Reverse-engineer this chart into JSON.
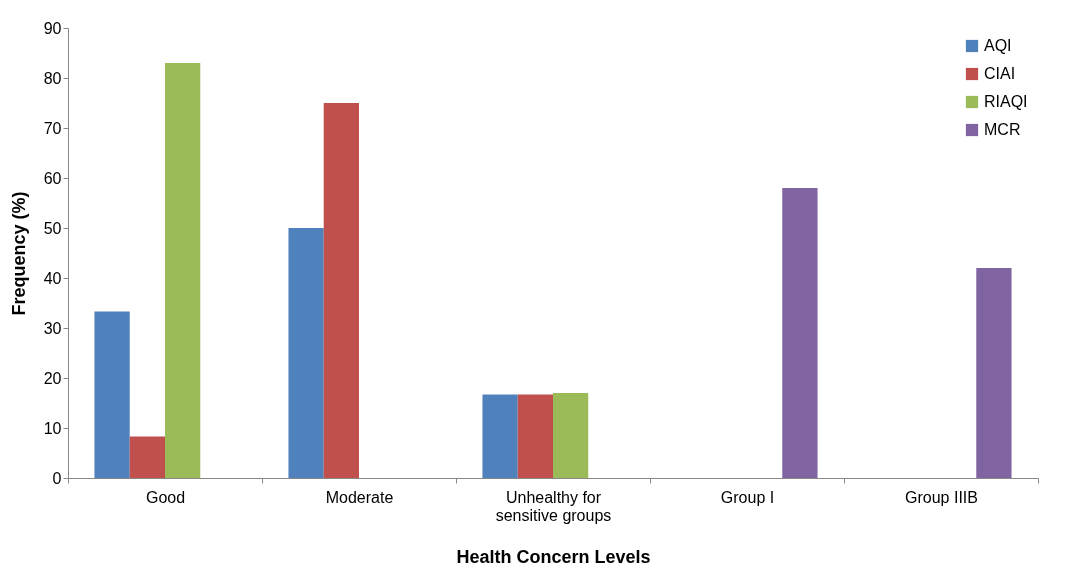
{
  "chart_data": {
    "type": "bar",
    "xlabel": "Health Concern Levels",
    "ylabel": "Frequency (%)",
    "categories": [
      "Good",
      "Moderate",
      "Unhealthy for sensitive groups",
      "Group I",
      "Group IIIB"
    ],
    "series": [
      {
        "name": "AQI",
        "color": "#4f81bd",
        "values": [
          33.3,
          50,
          16.7,
          null,
          null
        ]
      },
      {
        "name": "CIAI",
        "color": "#c0504d",
        "values": [
          8.3,
          75,
          16.7,
          null,
          null
        ]
      },
      {
        "name": "RIAQI",
        "color": "#9bbb59",
        "values": [
          83,
          null,
          17,
          null,
          null
        ]
      },
      {
        "name": "MCR",
        "color": "#8064a2",
        "values": [
          null,
          null,
          null,
          58,
          42
        ]
      }
    ],
    "ylim": [
      0,
      90
    ],
    "yticks": [
      0,
      10,
      20,
      30,
      40,
      50,
      60,
      70,
      80,
      90
    ],
    "grid": false,
    "legend": "top right"
  }
}
